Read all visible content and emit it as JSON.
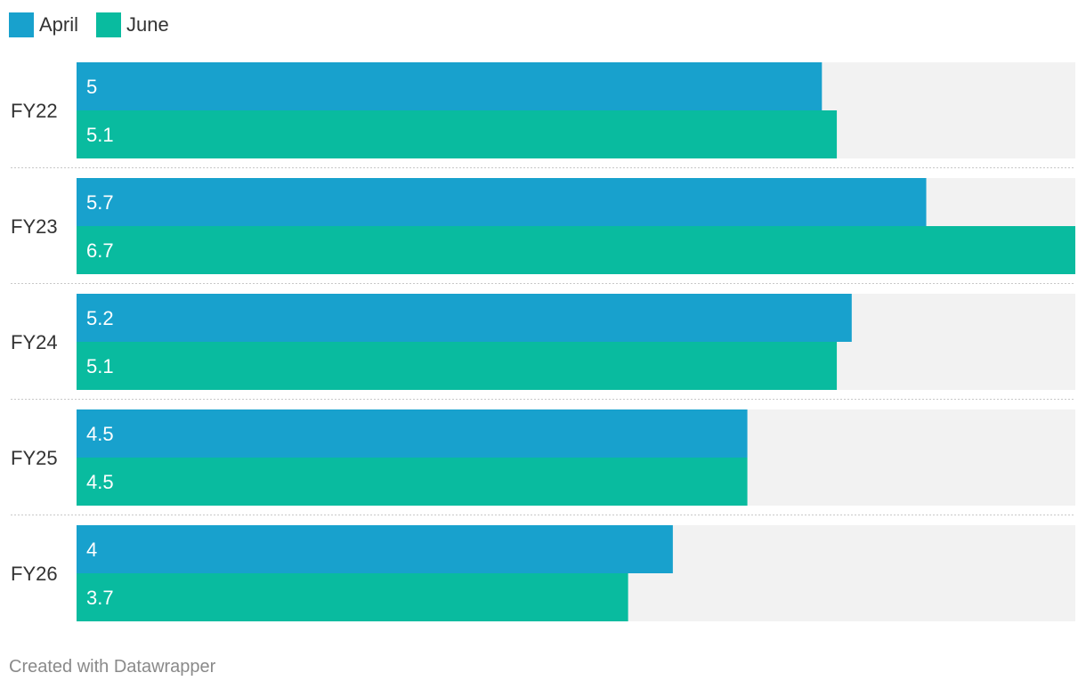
{
  "chart_data": {
    "type": "bar",
    "orientation": "horizontal",
    "categories": [
      "FY22",
      "FY23",
      "FY24",
      "FY25",
      "FY26"
    ],
    "series": [
      {
        "name": "April",
        "color": "#18a1cd",
        "values": [
          5,
          5.7,
          5.2,
          4.5,
          4
        ]
      },
      {
        "name": "June",
        "color": "#09bb9f",
        "values": [
          5.1,
          6.7,
          5.1,
          4.5,
          3.7
        ]
      }
    ],
    "value_labels": [
      [
        "5",
        "5.7",
        "5.2",
        "4.5",
        "4"
      ],
      [
        "5.1",
        "6.7",
        "5.1",
        "4.5",
        "3.7"
      ]
    ],
    "xlim": [
      0,
      6.7
    ],
    "background_track": true,
    "legend_position": "top-left"
  },
  "footer": "Created with Datawrapper"
}
